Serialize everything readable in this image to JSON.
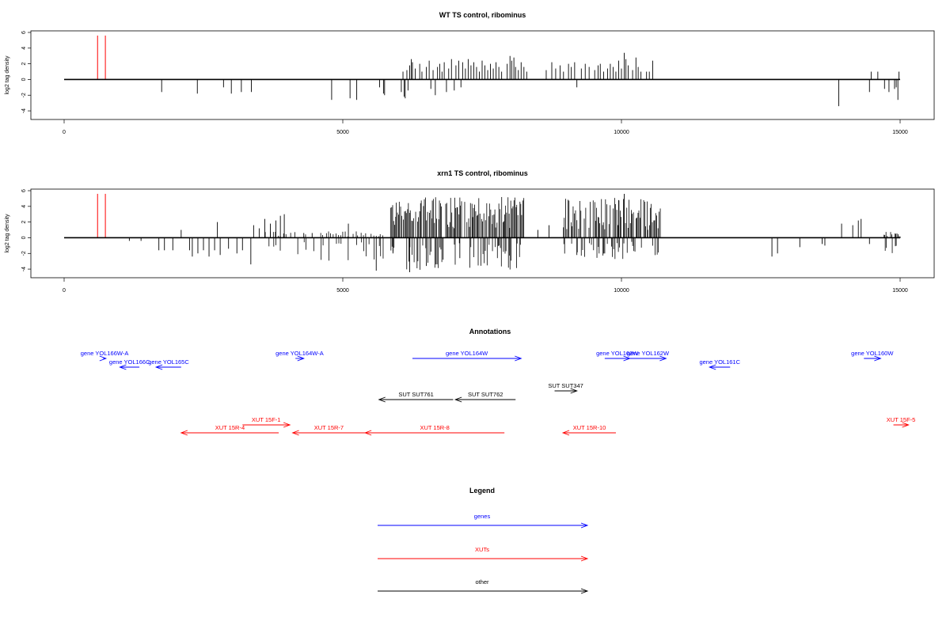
{
  "colors": {
    "genes": "#0000ff",
    "xuts": "#ff0000",
    "other": "#000000",
    "axis": "#000000"
  },
  "chart_data": [
    {
      "type": "bar",
      "title": "WT TS control, ribominus",
      "ylabel": "log2 tag density",
      "xlim": [
        0,
        15000
      ],
      "ylim": [
        -5,
        6
      ],
      "xticks": [
        0,
        5000,
        10000,
        15000
      ],
      "yticks": [
        6,
        4,
        2,
        0,
        -2,
        -4
      ],
      "grid": false,
      "red_bars": [
        [
          600,
          5.6
        ],
        [
          740,
          5.6
        ]
      ],
      "bars": [
        [
          1750,
          -1.6
        ],
        [
          2390,
          -1.8
        ],
        [
          2860,
          -1.0
        ],
        [
          3000,
          -1.8
        ],
        [
          3180,
          -1.6
        ],
        [
          3360,
          -1.6
        ],
        [
          4800,
          -2.6
        ],
        [
          5130,
          -2.4
        ],
        [
          5250,
          -2.6
        ],
        [
          5660,
          -1.0
        ],
        [
          5730,
          -1.8
        ],
        [
          5750,
          -2.0
        ],
        [
          6050,
          -1.6
        ],
        [
          6080,
          1.0
        ],
        [
          6100,
          -2.2
        ],
        [
          6120,
          -2.4
        ],
        [
          6150,
          1.2
        ],
        [
          6170,
          -1.4
        ],
        [
          6200,
          1.8
        ],
        [
          6230,
          2.6
        ],
        [
          6250,
          2.2
        ],
        [
          6300,
          1.4
        ],
        [
          6380,
          2.0
        ],
        [
          6420,
          1.0
        ],
        [
          6500,
          1.6
        ],
        [
          6550,
          2.4
        ],
        [
          6580,
          -1.2
        ],
        [
          6620,
          1.2
        ],
        [
          6660,
          -2.0
        ],
        [
          6700,
          1.6
        ],
        [
          6740,
          2.0
        ],
        [
          6780,
          1.0
        ],
        [
          6820,
          2.2
        ],
        [
          6860,
          -1.6
        ],
        [
          6900,
          1.4
        ],
        [
          6950,
          2.6
        ],
        [
          7000,
          -1.4
        ],
        [
          7030,
          1.8
        ],
        [
          7080,
          2.4
        ],
        [
          7120,
          -1.0
        ],
        [
          7150,
          2.2
        ],
        [
          7200,
          1.4
        ],
        [
          7250,
          2.6
        ],
        [
          7300,
          1.8
        ],
        [
          7350,
          2.2
        ],
        [
          7400,
          1.6
        ],
        [
          7450,
          1.0
        ],
        [
          7500,
          2.4
        ],
        [
          7550,
          1.8
        ],
        [
          7600,
          1.2
        ],
        [
          7650,
          2.0
        ],
        [
          7700,
          1.4
        ],
        [
          7750,
          2.2
        ],
        [
          7800,
          1.6
        ],
        [
          7850,
          1.0
        ],
        [
          7950,
          2.0
        ],
        [
          8000,
          3.0
        ],
        [
          8030,
          2.4
        ],
        [
          8070,
          2.8
        ],
        [
          8100,
          1.6
        ],
        [
          8150,
          1.2
        ],
        [
          8200,
          2.2
        ],
        [
          8250,
          1.6
        ],
        [
          8300,
          1.0
        ],
        [
          8650,
          1.2
        ],
        [
          8750,
          2.2
        ],
        [
          8820,
          1.4
        ],
        [
          8900,
          1.8
        ],
        [
          8960,
          1.0
        ],
        [
          9050,
          2.0
        ],
        [
          9100,
          1.6
        ],
        [
          9160,
          2.2
        ],
        [
          9200,
          -1.0
        ],
        [
          9280,
          1.4
        ],
        [
          9350,
          2.0
        ],
        [
          9420,
          1.6
        ],
        [
          9520,
          1.2
        ],
        [
          9580,
          1.8
        ],
        [
          9620,
          2.0
        ],
        [
          9680,
          1.0
        ],
        [
          9750,
          1.4
        ],
        [
          9800,
          2.0
        ],
        [
          9850,
          1.6
        ],
        [
          9900,
          1.0
        ],
        [
          9950,
          2.4
        ],
        [
          10000,
          1.4
        ],
        [
          10050,
          3.4
        ],
        [
          10080,
          2.6
        ],
        [
          10120,
          1.8
        ],
        [
          10200,
          1.2
        ],
        [
          10260,
          2.8
        ],
        [
          10300,
          1.6
        ],
        [
          10350,
          1.0
        ],
        [
          10450,
          1.0
        ],
        [
          10500,
          1.0
        ],
        [
          10560,
          2.4
        ],
        [
          13900,
          -3.4
        ],
        [
          14450,
          -1.6
        ],
        [
          14480,
          1.0
        ],
        [
          14600,
          1.0
        ],
        [
          14720,
          -1.2
        ],
        [
          14800,
          -1.6
        ],
        [
          14900,
          -1.2
        ],
        [
          14930,
          -1.0
        ],
        [
          14960,
          -2.6
        ],
        [
          14980,
          1.0
        ]
      ]
    },
    {
      "type": "bar",
      "title": "xrn1 TS control, ribominus",
      "ylabel": "log2 tag density",
      "xlim": [
        0,
        15000
      ],
      "ylim": [
        -5,
        6
      ],
      "xticks": [
        0,
        5000,
        10000,
        15000
      ],
      "yticks": [
        6,
        4,
        2,
        0,
        -2,
        -4
      ],
      "grid": false,
      "red_bars": [
        [
          600,
          5.6
        ],
        [
          740,
          5.6
        ]
      ],
      "dense": [
        {
          "from": 5850,
          "to": 8250,
          "step": 18,
          "pos": [
            1.2,
            5.2
          ],
          "neg": [
            -0.5,
            -4.2
          ]
        },
        {
          "from": 8950,
          "to": 10700,
          "step": 20,
          "pos": [
            1.0,
            5.2
          ],
          "neg": [
            -0.5,
            -2.8
          ]
        },
        {
          "from": 14700,
          "to": 15000,
          "step": 20,
          "pos": [
            0.0,
            0.8
          ],
          "neg": [
            -1.0,
            -4.8
          ]
        },
        {
          "from": 3600,
          "to": 5750,
          "step": 45,
          "pos": [
            0.0,
            0.8
          ],
          "neg": [
            -0.5,
            -3.0
          ]
        }
      ],
      "bars": [
        [
          1170,
          -0.4
        ],
        [
          1380,
          -0.4
        ],
        [
          1700,
          -1.6
        ],
        [
          1800,
          -1.6
        ],
        [
          1950,
          -1.6
        ],
        [
          2100,
          1.0
        ],
        [
          2250,
          -1.6
        ],
        [
          2300,
          -2.4
        ],
        [
          2400,
          -2.0
        ],
        [
          2500,
          -1.6
        ],
        [
          2600,
          -2.4
        ],
        [
          2700,
          -1.6
        ],
        [
          2750,
          2.0
        ],
        [
          2800,
          -2.2
        ],
        [
          2950,
          -1.4
        ],
        [
          3100,
          -2.0
        ],
        [
          3200,
          -1.6
        ],
        [
          3350,
          -3.4
        ],
        [
          3400,
          1.6
        ],
        [
          3500,
          1.2
        ],
        [
          3600,
          2.4
        ],
        [
          3700,
          1.8
        ],
        [
          3800,
          2.2
        ],
        [
          3880,
          2.8
        ],
        [
          3950,
          3.0
        ],
        [
          4300,
          0.6
        ],
        [
          4450,
          0.6
        ],
        [
          5100,
          1.8
        ],
        [
          5600,
          -4.2
        ],
        [
          5900,
          -2.0
        ],
        [
          6200,
          -4.4
        ],
        [
          6500,
          -3.6
        ],
        [
          6800,
          -2.8
        ],
        [
          7100,
          -2.6
        ],
        [
          8500,
          1.0
        ],
        [
          8700,
          1.6
        ],
        [
          9200,
          -2.2
        ],
        [
          9700,
          -2.0
        ],
        [
          9950,
          4.8
        ],
        [
          10050,
          5.6
        ],
        [
          12700,
          -2.4
        ],
        [
          12800,
          -2.0
        ],
        [
          13200,
          -1.2
        ],
        [
          13600,
          -0.8
        ],
        [
          13650,
          -1.0
        ],
        [
          13950,
          1.8
        ],
        [
          14150,
          1.6
        ],
        [
          14250,
          2.2
        ],
        [
          14300,
          2.4
        ],
        [
          14450,
          -0.8
        ]
      ]
    }
  ],
  "annotations": {
    "title": "Annotations",
    "items": [
      {
        "label": "gene YOL166W-A",
        "type": "genes",
        "strand": "+",
        "start": 700,
        "end": 750,
        "row": 0
      },
      {
        "label": "gene YOL166C",
        "type": "genes",
        "strand": "-",
        "start": 1000,
        "end": 1350,
        "row": 1
      },
      {
        "label": "gene YOL165C",
        "type": "genes",
        "strand": "-",
        "start": 1650,
        "end": 2100,
        "row": 1
      },
      {
        "label": "gene YOL164W-A",
        "type": "genes",
        "strand": "+",
        "start": 4150,
        "end": 4300,
        "row": 0
      },
      {
        "label": "gene YOL164W",
        "type": "genes",
        "strand": "+",
        "start": 6250,
        "end": 8200,
        "row": 0
      },
      {
        "label": "gene YOL163W",
        "type": "genes",
        "strand": "+",
        "start": 9700,
        "end": 10150,
        "row": 0
      },
      {
        "label": "gene YOL162W",
        "type": "genes",
        "strand": "+",
        "start": 10150,
        "end": 10800,
        "row": 0
      },
      {
        "label": "gene YOL161C",
        "type": "genes",
        "strand": "-",
        "start": 11580,
        "end": 11950,
        "row": 1
      },
      {
        "label": "gene YOL160W",
        "type": "genes",
        "strand": "+",
        "start": 14350,
        "end": 14650,
        "row": 0
      },
      {
        "label": "SUT SUT761",
        "type": "other",
        "strand": "-",
        "start": 5650,
        "end": 6980,
        "row": 3
      },
      {
        "label": "SUT SUT762",
        "type": "other",
        "strand": "-",
        "start": 7020,
        "end": 8100,
        "row": 3
      },
      {
        "label": "SUT SUT347",
        "type": "other",
        "strand": "+",
        "start": 8800,
        "end": 9200,
        "row": 2
      },
      {
        "label": "XUT 15F-1",
        "type": "xuts",
        "strand": "+",
        "start": 3200,
        "end": 4050,
        "row": 4
      },
      {
        "label": "XUT 15R-4",
        "type": "xuts",
        "strand": "-",
        "start": 2100,
        "end": 3850,
        "row": 5
      },
      {
        "label": "XUT 15R-7",
        "type": "xuts",
        "strand": "-",
        "start": 4100,
        "end": 5400,
        "row": 5
      },
      {
        "label": "XUT 15R-8",
        "type": "xuts",
        "strand": "-",
        "start": 5400,
        "end": 7900,
        "row": 5
      },
      {
        "label": "XUT 15R-10",
        "type": "xuts",
        "strand": "-",
        "start": 8950,
        "end": 9900,
        "row": 5
      },
      {
        "label": "XUT 15F-5",
        "type": "xuts",
        "strand": "+",
        "start": 14880,
        "end": 15150,
        "row": 4
      }
    ]
  },
  "legend": {
    "title": "Legend",
    "items": [
      {
        "label": "genes",
        "type": "genes"
      },
      {
        "label": "XUTs",
        "type": "xuts"
      },
      {
        "label": "other",
        "type": "other"
      }
    ]
  }
}
